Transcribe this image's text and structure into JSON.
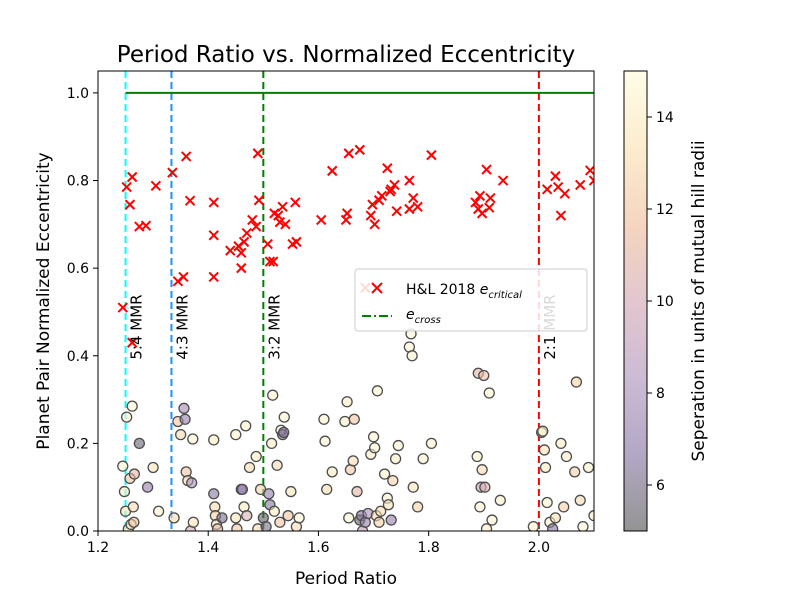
{
  "chart_data": {
    "type": "scatter",
    "title": "Period Ratio vs. Normalized Eccentricity",
    "xlabel": "Period Ratio",
    "ylabel": "Planet Pair Normalized Eccentricity",
    "xlim": [
      1.2,
      2.1
    ],
    "ylim": [
      0.0,
      1.05
    ],
    "xticks": [
      1.2,
      1.4,
      1.6,
      1.8,
      2.0
    ],
    "xtick_labels": [
      "1.2",
      "1.4",
      "1.6",
      "1.8",
      "2.0"
    ],
    "yticks": [
      0.0,
      0.2,
      0.4,
      0.6,
      0.8,
      1.0
    ],
    "ytick_labels": [
      "0.0",
      "0.2",
      "0.4",
      "0.6",
      "0.8",
      "1.0"
    ],
    "grid": false,
    "legend": {
      "position": "center-right",
      "entries": [
        {
          "marker": "x",
          "color": "#ff0000",
          "label": "H&L 2018 ",
          "italic": "e",
          "sub": "critical"
        },
        {
          "marker": "dashdot-line",
          "color": "#008000",
          "label": "",
          "italic": "e",
          "sub": "cross"
        }
      ]
    },
    "colorbar": {
      "label": "Seperation in units of mutual hill radii",
      "range": [
        5,
        15
      ],
      "ticks": [
        6,
        8,
        10,
        12,
        14
      ],
      "tick_labels": [
        "6",
        "8",
        "10",
        "12",
        "14"
      ],
      "colors": [
        "#5a5a5a",
        "#8b79a5",
        "#b196bd",
        "#d3a8b6",
        "#f0bf9d",
        "#fae3b4",
        "#fffbdc"
      ]
    },
    "e_cross": {
      "y": 1.0,
      "color": "#008000"
    },
    "mmr_lines": [
      {
        "x": 1.25,
        "label": "5:4 MMR",
        "color": "#00ffff"
      },
      {
        "x": 1.3333,
        "label": "4:3 MMR",
        "color": "#1e90ff"
      },
      {
        "x": 1.5,
        "label": "3:2 MMR",
        "color": "#008000"
      },
      {
        "x": 2.0,
        "label": "2:1 MMR",
        "color": "#ff0000"
      }
    ],
    "series": [
      {
        "name": "H&L 2018 e_critical",
        "marker": "x",
        "color": "#ff0000",
        "points": [
          [
            1.245,
            0.51
          ],
          [
            1.252,
            0.785
          ],
          [
            1.258,
            0.745
          ],
          [
            1.262,
            0.808
          ],
          [
            1.262,
            0.43
          ],
          [
            1.275,
            0.695
          ],
          [
            1.287,
            0.697
          ],
          [
            1.305,
            0.788
          ],
          [
            1.335,
            0.818
          ],
          [
            1.345,
            0.57
          ],
          [
            1.355,
            0.58
          ],
          [
            1.36,
            0.855
          ],
          [
            1.367,
            0.754
          ],
          [
            1.41,
            0.675
          ],
          [
            1.41,
            0.58
          ],
          [
            1.41,
            0.75
          ],
          [
            1.44,
            0.64
          ],
          [
            1.455,
            0.65
          ],
          [
            1.46,
            0.635
          ],
          [
            1.46,
            0.6
          ],
          [
            1.465,
            0.66
          ],
          [
            1.47,
            0.68
          ],
          [
            1.48,
            0.71
          ],
          [
            1.487,
            0.695
          ],
          [
            1.49,
            0.862
          ],
          [
            1.492,
            0.755
          ],
          [
            1.508,
            0.655
          ],
          [
            1.512,
            0.615
          ],
          [
            1.518,
            0.615
          ],
          [
            1.52,
            0.725
          ],
          [
            1.527,
            0.72
          ],
          [
            1.53,
            0.705
          ],
          [
            1.535,
            0.74
          ],
          [
            1.54,
            0.7
          ],
          [
            1.553,
            0.655
          ],
          [
            1.558,
            0.75
          ],
          [
            1.56,
            0.66
          ],
          [
            1.605,
            0.71
          ],
          [
            1.625,
            0.822
          ],
          [
            1.65,
            0.71
          ],
          [
            1.652,
            0.725
          ],
          [
            1.655,
            0.862
          ],
          [
            1.675,
            0.87
          ],
          [
            1.685,
            0.555
          ],
          [
            1.695,
            0.72
          ],
          [
            1.698,
            0.745
          ],
          [
            1.702,
            0.7
          ],
          [
            1.71,
            0.755
          ],
          [
            1.715,
            0.765
          ],
          [
            1.725,
            0.828
          ],
          [
            1.73,
            0.775
          ],
          [
            1.732,
            0.78
          ],
          [
            1.738,
            0.79
          ],
          [
            1.742,
            0.73
          ],
          [
            1.765,
            0.8
          ],
          [
            1.765,
            0.735
          ],
          [
            1.772,
            0.76
          ],
          [
            1.78,
            0.74
          ],
          [
            1.805,
            0.858
          ],
          [
            1.885,
            0.75
          ],
          [
            1.89,
            0.735
          ],
          [
            1.893,
            0.765
          ],
          [
            1.897,
            0.725
          ],
          [
            1.905,
            0.825
          ],
          [
            1.91,
            0.738
          ],
          [
            1.912,
            0.76
          ],
          [
            1.935,
            0.8
          ],
          [
            2.015,
            0.78
          ],
          [
            2.03,
            0.81
          ],
          [
            2.035,
            0.785
          ],
          [
            2.04,
            0.72
          ],
          [
            2.047,
            0.77
          ],
          [
            2.075,
            0.79
          ],
          [
            2.093,
            0.823
          ],
          [
            2.1,
            0.8
          ]
        ]
      },
      {
        "name": "Planet pairs (colored by separation)",
        "marker": "o",
        "points": [
          [
            1.245,
            0.148,
            14.5
          ],
          [
            1.248,
            0.09,
            14
          ],
          [
            1.25,
            0.045,
            13.5
          ],
          [
            1.252,
            0.26,
            14.5
          ],
          [
            1.255,
            0.005,
            13
          ],
          [
            1.258,
            0.12,
            12
          ],
          [
            1.26,
            0.015,
            14
          ],
          [
            1.262,
            0.285,
            14.5
          ],
          [
            1.264,
            0.055,
            13
          ],
          [
            1.266,
            0.13,
            11
          ],
          [
            1.275,
            0.2,
            5.5
          ],
          [
            1.29,
            0.1,
            7
          ],
          [
            1.3,
            0.145,
            13.5
          ],
          [
            1.31,
            0.045,
            14.5
          ],
          [
            1.265,
            0.02,
            12
          ],
          [
            1.338,
            0.03,
            13
          ],
          [
            1.345,
            0.25,
            12
          ],
          [
            1.35,
            0.22,
            13
          ],
          [
            1.356,
            0.28,
            7.5
          ],
          [
            1.358,
            0.255,
            7
          ],
          [
            1.36,
            0.135,
            12
          ],
          [
            1.363,
            0.115,
            13
          ],
          [
            1.368,
            0.0,
            10
          ],
          [
            1.37,
            0.11,
            8
          ],
          [
            1.372,
            0.21,
            14.5
          ],
          [
            1.373,
            0.02,
            13.5
          ],
          [
            1.41,
            0.208,
            14
          ],
          [
            1.41,
            0.085,
            6.5
          ],
          [
            1.412,
            0.055,
            13
          ],
          [
            1.413,
            0.035,
            12.5
          ],
          [
            1.415,
            0.015,
            14
          ],
          [
            1.417,
            0.005,
            11
          ],
          [
            1.425,
            0.03,
            6
          ],
          [
            1.45,
            0.22,
            14.5
          ],
          [
            1.45,
            0.03,
            13.5
          ],
          [
            1.452,
            0.005,
            12
          ],
          [
            1.46,
            0.095,
            6.5
          ],
          [
            1.462,
            0.095,
            7
          ],
          [
            1.465,
            0.055,
            14
          ],
          [
            1.468,
            0.24,
            14.5
          ],
          [
            1.47,
            0.035,
            10.5
          ],
          [
            1.475,
            0.145,
            13
          ],
          [
            1.487,
            0.17,
            14
          ],
          [
            1.49,
            0.005,
            13
          ],
          [
            1.495,
            0.095,
            12.5
          ],
          [
            1.5,
            0.03,
            5
          ],
          [
            1.505,
            0.01,
            6
          ],
          [
            1.51,
            0.085,
            7
          ],
          [
            1.512,
            0.06,
            6.5
          ],
          [
            1.515,
            0.2,
            14
          ],
          [
            1.517,
            0.31,
            14.5
          ],
          [
            1.52,
            0.045,
            14
          ],
          [
            1.525,
            0.15,
            13
          ],
          [
            1.53,
            0.02,
            12
          ],
          [
            1.532,
            0.23,
            14.5
          ],
          [
            1.535,
            0.22,
            5.5
          ],
          [
            1.537,
            0.225,
            6.5
          ],
          [
            1.538,
            0.26,
            14.5
          ],
          [
            1.545,
            0.035,
            12
          ],
          [
            1.55,
            0.09,
            13.5
          ],
          [
            1.56,
            0.01,
            13
          ],
          [
            1.565,
            0.03,
            14.5
          ],
          [
            1.61,
            0.255,
            14.5
          ],
          [
            1.612,
            0.205,
            14.5
          ],
          [
            1.615,
            0.095,
            13
          ],
          [
            1.625,
            0.135,
            14
          ],
          [
            1.648,
            0.25,
            14.5
          ],
          [
            1.652,
            0.295,
            14
          ],
          [
            1.655,
            0.03,
            14.5
          ],
          [
            1.658,
            0.14,
            12
          ],
          [
            1.663,
            0.16,
            13
          ],
          [
            1.665,
            0.255,
            12
          ],
          [
            1.67,
            0.09,
            11
          ],
          [
            1.675,
            0.025,
            5.5
          ],
          [
            1.678,
            0.035,
            6.5
          ],
          [
            1.68,
            0.0,
            9
          ],
          [
            1.685,
            0.02,
            7
          ],
          [
            1.69,
            0.04,
            8
          ],
          [
            1.695,
            0.175,
            14
          ],
          [
            1.7,
            0.215,
            14.5
          ],
          [
            1.702,
            0.19,
            14.5
          ],
          [
            1.705,
            0.035,
            13
          ],
          [
            1.707,
            0.32,
            14.5
          ],
          [
            1.71,
            0.02,
            12.5
          ],
          [
            1.713,
            0.045,
            13
          ],
          [
            1.72,
            0.13,
            14.5
          ],
          [
            1.725,
            0.075,
            14.5
          ],
          [
            1.727,
            0.06,
            13.5
          ],
          [
            1.732,
            0.025,
            7
          ],
          [
            1.735,
            0.115,
            12.5
          ],
          [
            1.74,
            0.165,
            14
          ],
          [
            1.745,
            0.195,
            14.5
          ],
          [
            1.765,
            0.42,
            14.5
          ],
          [
            1.768,
            0.45,
            14.5
          ],
          [
            1.77,
            0.4,
            14.5
          ],
          [
            1.772,
            0.1,
            13.5
          ],
          [
            1.78,
            0.055,
            12.5
          ],
          [
            1.79,
            0.165,
            14.5
          ],
          [
            1.805,
            0.2,
            14.5
          ],
          [
            1.888,
            0.17,
            14.5
          ],
          [
            1.89,
            0.36,
            11
          ],
          [
            1.893,
            0.055,
            14.5
          ],
          [
            1.895,
            0.1,
            9
          ],
          [
            1.897,
            0.14,
            13
          ],
          [
            1.9,
            0.355,
            11.5
          ],
          [
            1.902,
            0.1,
            10.5
          ],
          [
            1.905,
            0.005,
            14
          ],
          [
            1.91,
            0.315,
            14.5
          ],
          [
            1.915,
            0.025,
            14.5
          ],
          [
            1.93,
            0.07,
            14.5
          ],
          [
            1.99,
            0.01,
            14.5
          ],
          [
            2.005,
            0.225,
            13.5
          ],
          [
            2.007,
            0.228,
            14.5
          ],
          [
            2.01,
            0.185,
            13.5
          ],
          [
            2.012,
            0.145,
            14
          ],
          [
            2.015,
            0.065,
            14.5
          ],
          [
            2.02,
            0.02,
            14.5
          ],
          [
            2.025,
            0.005,
            6.5
          ],
          [
            2.03,
            0.03,
            13.5
          ],
          [
            2.04,
            0.2,
            14
          ],
          [
            2.045,
            0.055,
            12.5
          ],
          [
            2.05,
            0.17,
            14
          ],
          [
            2.065,
            0.135,
            12.5
          ],
          [
            2.068,
            0.34,
            12.5
          ],
          [
            2.075,
            0.07,
            13
          ],
          [
            2.08,
            0.01,
            14.5
          ],
          [
            2.09,
            0.145,
            14.5
          ],
          [
            2.1,
            0.035,
            14
          ]
        ]
      }
    ]
  }
}
